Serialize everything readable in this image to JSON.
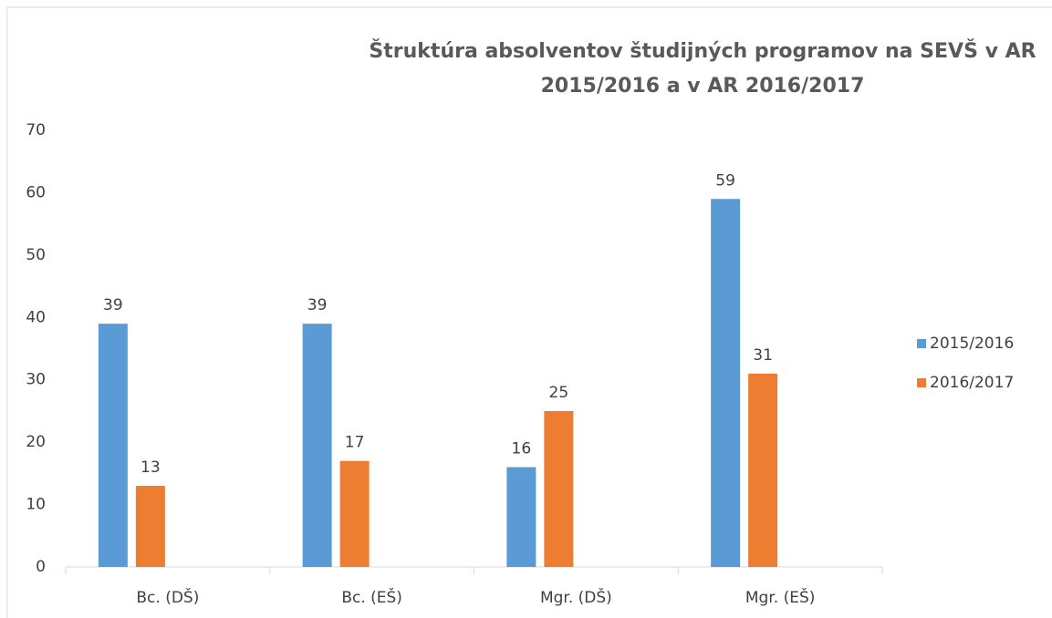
{
  "chart_data": {
    "type": "bar",
    "title": [
      "Štruktúra absolventov študijných programov na SEVŠ v AR",
      "2015/2016 a v AR 2016/2017"
    ],
    "categories": [
      "Bc. (DŠ)",
      "Bc. (EŠ)",
      "Mgr. (DŠ)",
      "Mgr. (EŠ)"
    ],
    "series": [
      {
        "name": "2015/2016",
        "color": "#5b9bd5",
        "values": [
          39,
          39,
          16,
          59
        ]
      },
      {
        "name": "2016/2017",
        "color": "#ed7d31",
        "values": [
          13,
          17,
          25,
          31
        ]
      }
    ],
    "ylim": [
      0,
      70
    ],
    "yticks": [
      0,
      10,
      20,
      30,
      40,
      50,
      60,
      70
    ],
    "grid": false,
    "legend": "right"
  }
}
